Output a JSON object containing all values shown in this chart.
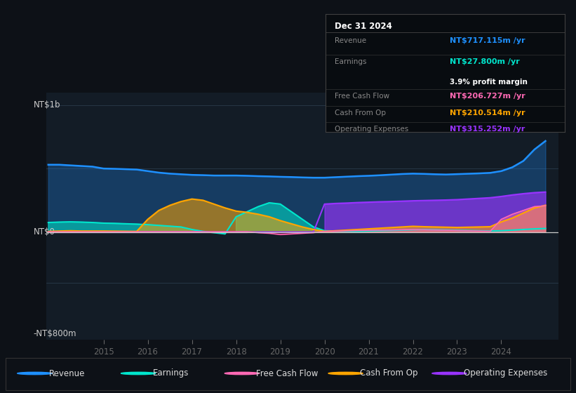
{
  "background_color": "#0d1117",
  "chart_bg_color": "#131c26",
  "colors": {
    "revenue": "#1e90ff",
    "earnings": "#00e5cc",
    "free_cash_flow": "#ff69b4",
    "cash_from_op": "#ffa500",
    "operating_expenses": "#9933ff"
  },
  "info_box": {
    "date": "Dec 31 2024",
    "revenue_label": "Revenue",
    "revenue_value": "NT$717.115m /yr",
    "earnings_label": "Earnings",
    "earnings_value": "NT$27.800m /yr",
    "profit_margin": "3.9% profit margin",
    "fcf_label": "Free Cash Flow",
    "fcf_value": "NT$206.727m /yr",
    "cfop_label": "Cash From Op",
    "cfop_value": "NT$210.514m /yr",
    "opex_label": "Operating Expenses",
    "opex_value": "NT$315.252m /yr"
  },
  "legend": [
    {
      "label": "Revenue",
      "color": "#1e90ff"
    },
    {
      "label": "Earnings",
      "color": "#00e5cc"
    },
    {
      "label": "Free Cash Flow",
      "color": "#ff69b4"
    },
    {
      "label": "Cash From Op",
      "color": "#ffa500"
    },
    {
      "label": "Operating Expenses",
      "color": "#9933ff"
    }
  ],
  "ylabel_top": "NT$1b",
  "ylabel_zero": "NT$0",
  "ylabel_neg": "-NT$800m",
  "ylim": [
    -850,
    1100
  ],
  "xlim_start": 2013.7,
  "xlim_end": 2025.3,
  "xticks": [
    2015,
    2016,
    2017,
    2018,
    2019,
    2020,
    2021,
    2022,
    2023,
    2024
  ],
  "x": [
    2013.75,
    2014.0,
    2014.25,
    2014.5,
    2014.75,
    2015.0,
    2015.25,
    2015.5,
    2015.75,
    2016.0,
    2016.25,
    2016.5,
    2016.75,
    2017.0,
    2017.25,
    2017.5,
    2017.75,
    2018.0,
    2018.25,
    2018.5,
    2018.75,
    2019.0,
    2019.25,
    2019.5,
    2019.75,
    2020.0,
    2020.25,
    2020.5,
    2020.75,
    2021.0,
    2021.25,
    2021.5,
    2021.75,
    2022.0,
    2022.25,
    2022.5,
    2022.75,
    2023.0,
    2023.25,
    2023.5,
    2023.75,
    2024.0,
    2024.25,
    2024.5,
    2024.75,
    2025.0
  ],
  "revenue": [
    530,
    530,
    525,
    520,
    515,
    500,
    498,
    495,
    492,
    480,
    468,
    460,
    455,
    450,
    448,
    445,
    445,
    445,
    443,
    440,
    438,
    435,
    433,
    430,
    428,
    428,
    432,
    436,
    440,
    443,
    447,
    452,
    457,
    460,
    458,
    455,
    453,
    456,
    459,
    462,
    466,
    480,
    510,
    560,
    650,
    717
  ],
  "earnings": [
    75,
    78,
    80,
    78,
    75,
    70,
    68,
    65,
    62,
    58,
    52,
    46,
    40,
    20,
    5,
    -5,
    -15,
    120,
    160,
    200,
    230,
    220,
    160,
    100,
    40,
    10,
    8,
    6,
    5,
    8,
    10,
    12,
    15,
    18,
    20,
    18,
    16,
    14,
    12,
    10,
    8,
    10,
    15,
    20,
    25,
    28
  ],
  "free_cash_flow": [
    2,
    2,
    2,
    2,
    2,
    2,
    2,
    2,
    2,
    2,
    2,
    2,
    2,
    2,
    2,
    2,
    2,
    2,
    2,
    -5,
    -10,
    -20,
    -15,
    -10,
    -5,
    5,
    8,
    10,
    12,
    14,
    15,
    16,
    18,
    20,
    18,
    16,
    14,
    12,
    10,
    8,
    6,
    100,
    140,
    170,
    200,
    207
  ],
  "cash_from_op": [
    5,
    8,
    10,
    8,
    8,
    8,
    7,
    6,
    5,
    100,
    170,
    210,
    240,
    260,
    250,
    220,
    190,
    165,
    155,
    140,
    120,
    90,
    65,
    40,
    20,
    5,
    10,
    15,
    20,
    25,
    30,
    35,
    40,
    45,
    42,
    40,
    38,
    36,
    38,
    40,
    42,
    80,
    110,
    150,
    190,
    211
  ],
  "operating_expenses": [
    0,
    0,
    0,
    0,
    0,
    0,
    0,
    0,
    0,
    0,
    0,
    0,
    0,
    0,
    0,
    0,
    0,
    0,
    0,
    0,
    0,
    0,
    0,
    0,
    0,
    220,
    225,
    228,
    232,
    235,
    238,
    240,
    243,
    246,
    248,
    250,
    252,
    255,
    260,
    265,
    270,
    280,
    292,
    302,
    310,
    315
  ],
  "cash_from_op_negative": [
    0,
    0,
    0,
    0,
    0,
    0,
    0,
    0,
    0,
    0,
    0,
    0,
    0,
    0,
    0,
    0,
    0,
    0,
    0,
    0,
    0,
    0,
    0,
    0,
    0,
    0,
    0,
    0,
    0,
    0,
    0,
    0,
    0,
    0,
    0,
    0,
    0,
    0,
    0,
    0,
    0,
    0,
    0,
    0,
    0,
    0
  ]
}
